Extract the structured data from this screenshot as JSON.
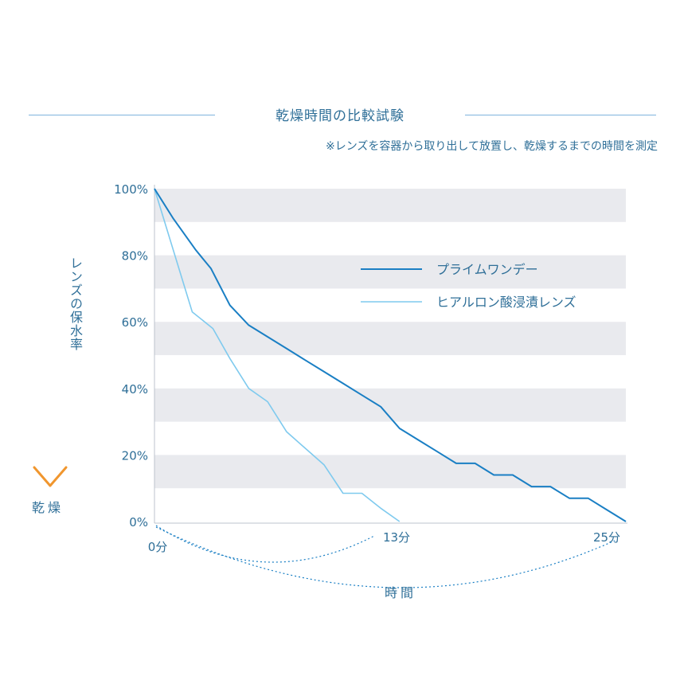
{
  "chart_data": {
    "type": "line",
    "title": "乾燥時間の比較試験",
    "subtitle": "※レンズを容器から取り出して放置し、乾燥するまでの時間を測定",
    "ylabel": "レンズの保水率",
    "ylabel_bottom": "乾燥",
    "xlabel": "時間",
    "ylim": [
      0,
      100
    ],
    "y_ticks": [
      "100%",
      "80%",
      "60%",
      "40%",
      "20%",
      "0%"
    ],
    "x_ticks": [
      {
        "value": 0,
        "label": "0分"
      },
      {
        "value": 13,
        "label": "13分"
      },
      {
        "value": 25,
        "label": "25分"
      }
    ],
    "xlim": [
      0,
      25
    ],
    "grid": "alternating horizontal bands",
    "legend_position": "upper-right inside plot",
    "series": [
      {
        "name": "プライムワンデー",
        "color": "#1a7fc4",
        "points": [
          [
            0,
            100
          ],
          [
            1,
            91
          ],
          [
            2.2,
            81.5
          ],
          [
            3,
            76
          ],
          [
            4,
            65
          ],
          [
            5,
            59
          ],
          [
            6,
            55.5
          ],
          [
            7,
            52
          ],
          [
            8,
            48.5
          ],
          [
            9,
            45
          ],
          [
            10,
            41.5
          ],
          [
            11,
            38
          ],
          [
            12,
            34.5
          ],
          [
            13,
            28
          ],
          [
            14,
            24.5
          ],
          [
            15,
            21
          ],
          [
            16,
            17.5
          ],
          [
            17,
            17.5
          ],
          [
            18,
            14
          ],
          [
            19,
            14
          ],
          [
            20,
            10.5
          ],
          [
            21,
            10.5
          ],
          [
            22,
            7
          ],
          [
            23,
            7
          ],
          [
            24,
            3.5
          ],
          [
            25,
            0
          ]
        ]
      },
      {
        "name": "ヒアルロン酸浸漬レンズ",
        "color": "#7fcaee",
        "points": [
          [
            0,
            100
          ],
          [
            2,
            63
          ],
          [
            3.1,
            58
          ],
          [
            4,
            49
          ],
          [
            5,
            40
          ],
          [
            6,
            36
          ],
          [
            7,
            27
          ],
          [
            8,
            22
          ],
          [
            9,
            17
          ],
          [
            10,
            8.5
          ],
          [
            11,
            8.5
          ],
          [
            12,
            4
          ],
          [
            13,
            0
          ]
        ]
      }
    ]
  }
}
